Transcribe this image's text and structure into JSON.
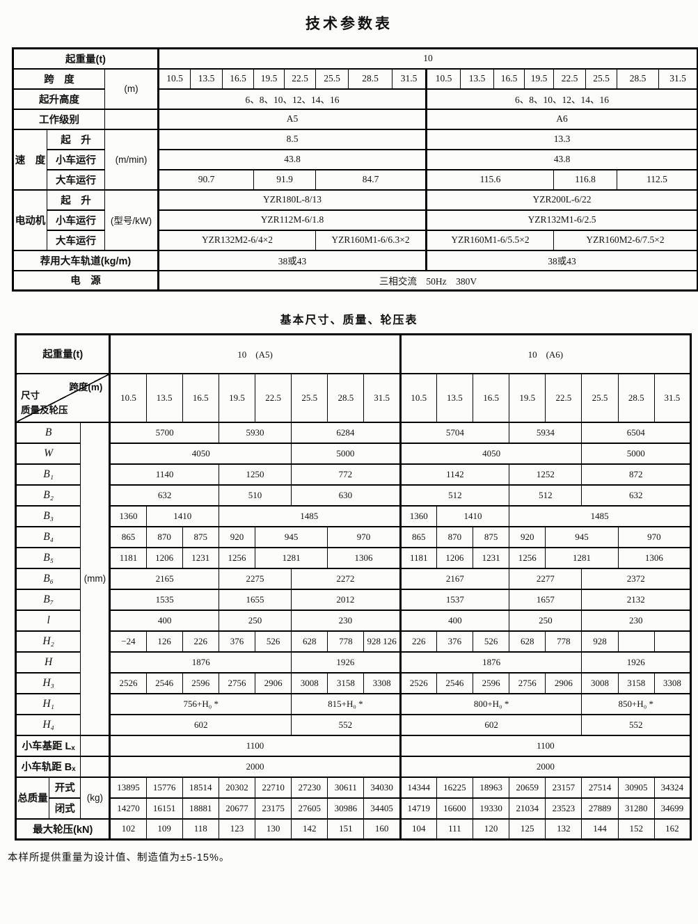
{
  "page": {
    "title1": "技术参数表",
    "title2": "基本尺寸、质量、轮压表",
    "footnote": "本样所提供重量为设计值、制造值为±5-15%。"
  },
  "tech": {
    "rows": [
      {
        "pre": [
          {
            "t": "起重量(t)",
            "c": 3
          }
        ],
        "cells": [
          {
            "v": "10",
            "s": 16
          }
        ]
      },
      {
        "pre": [
          {
            "t": "跨　度",
            "c": 2
          },
          {
            "t": "(m)",
            "r": 2,
            "k": "unit"
          }
        ],
        "cells": [
          {
            "v": "10.5"
          },
          {
            "v": "13.5"
          },
          {
            "v": "16.5"
          },
          {
            "v": "19.5"
          },
          {
            "v": "22.5"
          },
          {
            "v": "25.5"
          },
          {
            "v": "28.5"
          },
          {
            "v": "31.5"
          },
          {
            "v": "10.5"
          },
          {
            "v": "13.5"
          },
          {
            "v": "16.5"
          },
          {
            "v": "19.5"
          },
          {
            "v": "22.5"
          },
          {
            "v": "25.5"
          },
          {
            "v": "28.5"
          },
          {
            "v": "31.5"
          }
        ]
      },
      {
        "pre": [
          {
            "t": "起升高度",
            "c": 2
          }
        ],
        "cells": [
          {
            "v": "6、8、10、12、14、16",
            "s": 8
          },
          {
            "v": "6、8、10、12、14、16",
            "s": 8
          }
        ]
      },
      {
        "pre": [
          {
            "t": "工作级别",
            "c": 2
          },
          {
            "t": "",
            "k": "unit"
          }
        ],
        "cells": [
          {
            "v": "A5",
            "s": 8
          },
          {
            "v": "A6",
            "s": 8
          }
        ]
      },
      {
        "pre": [
          {
            "t": "速　度",
            "r": 3
          },
          {
            "t": "起　升"
          },
          {
            "t": "(m/min)",
            "r": 3,
            "k": "unit"
          }
        ],
        "cells": [
          {
            "v": "8.5",
            "s": 8
          },
          {
            "v": "13.3",
            "s": 8
          }
        ]
      },
      {
        "pre": [
          {
            "t": "小车运行"
          }
        ],
        "cells": [
          {
            "v": "43.8",
            "s": 8
          },
          {
            "v": "43.8",
            "s": 8
          }
        ]
      },
      {
        "pre": [
          {
            "t": "大车运行"
          }
        ],
        "cells": [
          {
            "v": "90.7",
            "s": 3
          },
          {
            "v": "91.9",
            "s": 2
          },
          {
            "v": "84.7",
            "s": 3
          },
          {
            "v": "115.6",
            "s": 4
          },
          {
            "v": "116.8",
            "s": 2
          },
          {
            "v": "112.5",
            "s": 2
          }
        ]
      },
      {
        "pre": [
          {
            "t": "电动机",
            "r": 3
          },
          {
            "t": "起　升"
          },
          {
            "t": "(型号/kW)",
            "r": 3,
            "k": "unit"
          }
        ],
        "cells": [
          {
            "v": "YZR180L-8/13",
            "s": 8
          },
          {
            "v": "YZR200L-6/22",
            "s": 8
          }
        ]
      },
      {
        "pre": [
          {
            "t": "小车运行"
          }
        ],
        "cells": [
          {
            "v": "YZR112M-6/1.8",
            "s": 8
          },
          {
            "v": "YZR132M1-6/2.5",
            "s": 8
          }
        ]
      },
      {
        "pre": [
          {
            "t": "大车运行"
          }
        ],
        "cells": [
          {
            "v": "YZR132M2-6/4×2",
            "s": 5
          },
          {
            "v": "YZR160M1-6/6.3×2",
            "s": 3
          },
          {
            "v": "YZR160M1-6/5.5×2",
            "s": 4
          },
          {
            "v": "YZR160M2-6/7.5×2",
            "s": 4
          }
        ]
      },
      {
        "pre": [
          {
            "t": "荐用大车轨道(kg/m)",
            "c": 3
          }
        ],
        "cells": [
          {
            "v": "38或43",
            "s": 8
          },
          {
            "v": "38或43",
            "s": 8
          }
        ]
      },
      {
        "pre": [
          {
            "t": "电　源",
            "c": 3
          }
        ],
        "cells": [
          {
            "v": "三相交流　50Hz　380V",
            "s": 16
          }
        ]
      }
    ]
  },
  "basic": {
    "capacity_label": "起重量(t)",
    "group_a5": "10　(A5)",
    "group_a6": "10　(A6)",
    "diag": {
      "top": "跨度(m)",
      "left1": "尺寸",
      "left2": "质量及轮压"
    },
    "spans": [
      "10.5",
      "13.5",
      "16.5",
      "19.5",
      "22.5",
      "25.5",
      "28.5",
      "31.5"
    ],
    "rows": [
      {
        "pre": [
          {
            "t": "B",
            "c": 2,
            "k": "ital"
          },
          {
            "t": "(mm)",
            "r": 15,
            "k": "unit"
          }
        ],
        "cells": [
          {
            "v": "5700",
            "s": 3
          },
          {
            "v": "5930",
            "s": 2
          },
          {
            "v": "6284",
            "s": 3
          },
          {
            "v": "5704",
            "s": 3
          },
          {
            "v": "5934",
            "s": 2
          },
          {
            "v": "6504",
            "s": 3
          }
        ]
      },
      {
        "pre": [
          {
            "t": "W",
            "c": 2,
            "k": "ital"
          }
        ],
        "cells": [
          {
            "v": "4050",
            "s": 5
          },
          {
            "v": "5000",
            "s": 3
          },
          {
            "v": "4050",
            "s": 5
          },
          {
            "v": "5000",
            "s": 3
          }
        ]
      },
      {
        "pre": [
          {
            "t": "B₁",
            "c": 2,
            "k": "ital"
          }
        ],
        "cells": [
          {
            "v": "1140",
            "s": 3
          },
          {
            "v": "1250",
            "s": 2
          },
          {
            "v": "772",
            "s": 3
          },
          {
            "v": "1142",
            "s": 3
          },
          {
            "v": "1252",
            "s": 2
          },
          {
            "v": "872",
            "s": 3
          }
        ]
      },
      {
        "pre": [
          {
            "t": "B₂",
            "c": 2,
            "k": "ital"
          }
        ],
        "cells": [
          {
            "v": "632",
            "s": 3
          },
          {
            "v": "510",
            "s": 2
          },
          {
            "v": "630",
            "s": 3
          },
          {
            "v": "512",
            "s": 3
          },
          {
            "v": "512",
            "s": 2
          },
          {
            "v": "632",
            "s": 3
          }
        ]
      },
      {
        "pre": [
          {
            "t": "B₃",
            "c": 2,
            "k": "ital"
          }
        ],
        "cells": [
          {
            "v": "1360"
          },
          {
            "v": "1410",
            "s": 2
          },
          {
            "v": "1485",
            "s": 5
          },
          {
            "v": "1360"
          },
          {
            "v": "1410",
            "s": 2
          },
          {
            "v": "1485",
            "s": 5
          }
        ]
      },
      {
        "pre": [
          {
            "t": "B₄",
            "c": 2,
            "k": "ital"
          }
        ],
        "cells": [
          {
            "v": "865"
          },
          {
            "v": "870"
          },
          {
            "v": "875"
          },
          {
            "v": "920"
          },
          {
            "v": "945",
            "s": 2
          },
          {
            "v": "970",
            "s": 2
          },
          {
            "v": "865"
          },
          {
            "v": "870"
          },
          {
            "v": "875"
          },
          {
            "v": "920"
          },
          {
            "v": "945",
            "s": 2
          },
          {
            "v": "970",
            "s": 2
          }
        ]
      },
      {
        "pre": [
          {
            "t": "B₅",
            "c": 2,
            "k": "ital"
          }
        ],
        "cells": [
          {
            "v": "1181"
          },
          {
            "v": "1206"
          },
          {
            "v": "1231"
          },
          {
            "v": "1256"
          },
          {
            "v": "1281",
            "s": 2
          },
          {
            "v": "1306",
            "s": 2
          },
          {
            "v": "1181"
          },
          {
            "v": "1206"
          },
          {
            "v": "1231"
          },
          {
            "v": "1256"
          },
          {
            "v": "1281",
            "s": 2
          },
          {
            "v": "1306",
            "s": 2
          }
        ]
      },
      {
        "pre": [
          {
            "t": "B₆",
            "c": 2,
            "k": "ital"
          }
        ],
        "cells": [
          {
            "v": "2165",
            "s": 3
          },
          {
            "v": "2275",
            "s": 2
          },
          {
            "v": "2272",
            "s": 3
          },
          {
            "v": "2167",
            "s": 3
          },
          {
            "v": "2277",
            "s": 2
          },
          {
            "v": "2372",
            "s": 3
          }
        ]
      },
      {
        "pre": [
          {
            "t": "B₇",
            "c": 2,
            "k": "ital"
          }
        ],
        "cells": [
          {
            "v": "1535",
            "s": 3
          },
          {
            "v": "1655",
            "s": 2
          },
          {
            "v": "2012",
            "s": 3
          },
          {
            "v": "1537",
            "s": 3
          },
          {
            "v": "1657",
            "s": 2
          },
          {
            "v": "2132",
            "s": 3
          }
        ]
      },
      {
        "pre": [
          {
            "t": "l",
            "c": 2,
            "k": "ital"
          }
        ],
        "cells": [
          {
            "v": "400",
            "s": 3
          },
          {
            "v": "250",
            "s": 2
          },
          {
            "v": "230",
            "s": 3
          },
          {
            "v": "400",
            "s": 3
          },
          {
            "v": "250",
            "s": 2
          },
          {
            "v": "230",
            "s": 3
          }
        ]
      },
      {
        "pre": [
          {
            "t": "H₂",
            "c": 2,
            "k": "ital"
          }
        ],
        "cells": [
          {
            "v": "−24"
          },
          {
            "v": "126"
          },
          {
            "v": "226"
          },
          {
            "v": "376"
          },
          {
            "v": "526"
          },
          {
            "v": "628"
          },
          {
            "v": "778"
          },
          {
            "v": "928 126"
          },
          {
            "v": "226"
          },
          {
            "v": "376"
          },
          {
            "v": "526"
          },
          {
            "v": "628"
          },
          {
            "v": "778"
          },
          {
            "v": "928"
          },
          {
            "v": ""
          },
          {
            "v": ""
          }
        ]
      },
      {
        "pre": [
          {
            "t": "H",
            "c": 2,
            "k": "ital"
          }
        ],
        "cells": [
          {
            "v": "1876",
            "s": 5
          },
          {
            "v": "1926",
            "s": 3
          },
          {
            "v": "1876",
            "s": 5
          },
          {
            "v": "1926",
            "s": 3
          }
        ]
      },
      {
        "pre": [
          {
            "t": "H₃",
            "c": 2,
            "k": "ital"
          }
        ],
        "cells": [
          {
            "v": "2526"
          },
          {
            "v": "2546"
          },
          {
            "v": "2596"
          },
          {
            "v": "2756"
          },
          {
            "v": "2906"
          },
          {
            "v": "3008"
          },
          {
            "v": "3158"
          },
          {
            "v": "3308"
          },
          {
            "v": "2526"
          },
          {
            "v": "2546"
          },
          {
            "v": "2596"
          },
          {
            "v": "2756"
          },
          {
            "v": "2906"
          },
          {
            "v": "3008"
          },
          {
            "v": "3158"
          },
          {
            "v": "3308"
          }
        ]
      },
      {
        "pre": [
          {
            "t": "H₁",
            "c": 2,
            "k": "ital"
          }
        ],
        "cells": [
          {
            "v": "756+H₀ *",
            "s": 5
          },
          {
            "v": "815+H₀ *",
            "s": 3
          },
          {
            "v": "800+H₀ *",
            "s": 5
          },
          {
            "v": "850+H₀ *",
            "s": 3
          }
        ]
      },
      {
        "pre": [
          {
            "t": "H₄",
            "c": 2,
            "k": "ital"
          }
        ],
        "cells": [
          {
            "v": "602",
            "s": 5
          },
          {
            "v": "552",
            "s": 3
          },
          {
            "v": "602",
            "s": 5
          },
          {
            "v": "552",
            "s": 3
          }
        ]
      },
      {
        "pre": [
          {
            "t": "小车基距 Lₓ",
            "c": 2
          },
          {
            "t": "",
            "k": "unit"
          }
        ],
        "cells": [
          {
            "v": "1100",
            "s": 8
          },
          {
            "v": "1100",
            "s": 8
          }
        ]
      },
      {
        "pre": [
          {
            "t": "小车轨距 Bₓ",
            "c": 2
          },
          {
            "t": "",
            "k": "unit"
          }
        ],
        "cells": [
          {
            "v": "2000",
            "s": 8
          },
          {
            "v": "2000",
            "s": 8
          }
        ]
      },
      {
        "pre": [
          {
            "t": "总质量",
            "r": 2
          },
          {
            "t": "开式"
          },
          {
            "t": "(kg)",
            "r": 2,
            "k": "unit"
          }
        ],
        "cells": [
          {
            "v": "13895"
          },
          {
            "v": "15776"
          },
          {
            "v": "18514"
          },
          {
            "v": "20302"
          },
          {
            "v": "22710"
          },
          {
            "v": "27230"
          },
          {
            "v": "30611"
          },
          {
            "v": "34030"
          },
          {
            "v": "14344"
          },
          {
            "v": "16225"
          },
          {
            "v": "18963"
          },
          {
            "v": "20659"
          },
          {
            "v": "23157"
          },
          {
            "v": "27514"
          },
          {
            "v": "30905"
          },
          {
            "v": "34324"
          }
        ]
      },
      {
        "pre": [
          {
            "t": "闭式"
          }
        ],
        "cells": [
          {
            "v": "14270"
          },
          {
            "v": "16151"
          },
          {
            "v": "18881"
          },
          {
            "v": "20677"
          },
          {
            "v": "23175"
          },
          {
            "v": "27605"
          },
          {
            "v": "30986"
          },
          {
            "v": "34405"
          },
          {
            "v": "14719"
          },
          {
            "v": "16600"
          },
          {
            "v": "19330"
          },
          {
            "v": "21034"
          },
          {
            "v": "23523"
          },
          {
            "v": "27889"
          },
          {
            "v": "31280"
          },
          {
            "v": "34699"
          }
        ]
      },
      {
        "pre": [
          {
            "t": "最大轮压(kN)",
            "c": 3
          }
        ],
        "cells": [
          {
            "v": "102"
          },
          {
            "v": "109"
          },
          {
            "v": "118"
          },
          {
            "v": "123"
          },
          {
            "v": "130"
          },
          {
            "v": "142"
          },
          {
            "v": "151"
          },
          {
            "v": "160"
          },
          {
            "v": "104"
          },
          {
            "v": "111"
          },
          {
            "v": "120"
          },
          {
            "v": "125"
          },
          {
            "v": "132"
          },
          {
            "v": "144"
          },
          {
            "v": "152"
          },
          {
            "v": "162"
          }
        ]
      }
    ]
  }
}
